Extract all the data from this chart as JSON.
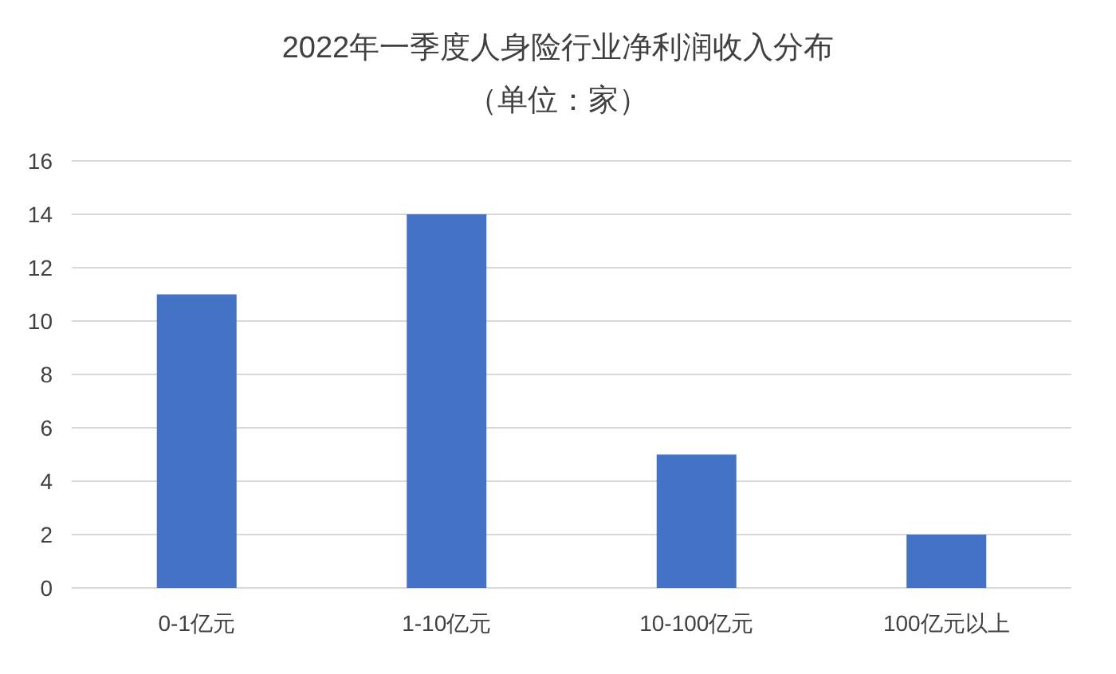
{
  "chart_data": {
    "type": "bar",
    "title": "2022年一季度人身险行业净利润收入分布",
    "subtitle": "（单位：家）",
    "categories": [
      "0-1亿元",
      "1-10亿元",
      "10-100亿元",
      "100亿元以上"
    ],
    "values": [
      11,
      14,
      5,
      2
    ],
    "color": "#4472c4",
    "ylim": [
      0,
      16
    ],
    "yticks": [
      0,
      2,
      4,
      6,
      8,
      10,
      12,
      14,
      16
    ],
    "grid": "y"
  }
}
